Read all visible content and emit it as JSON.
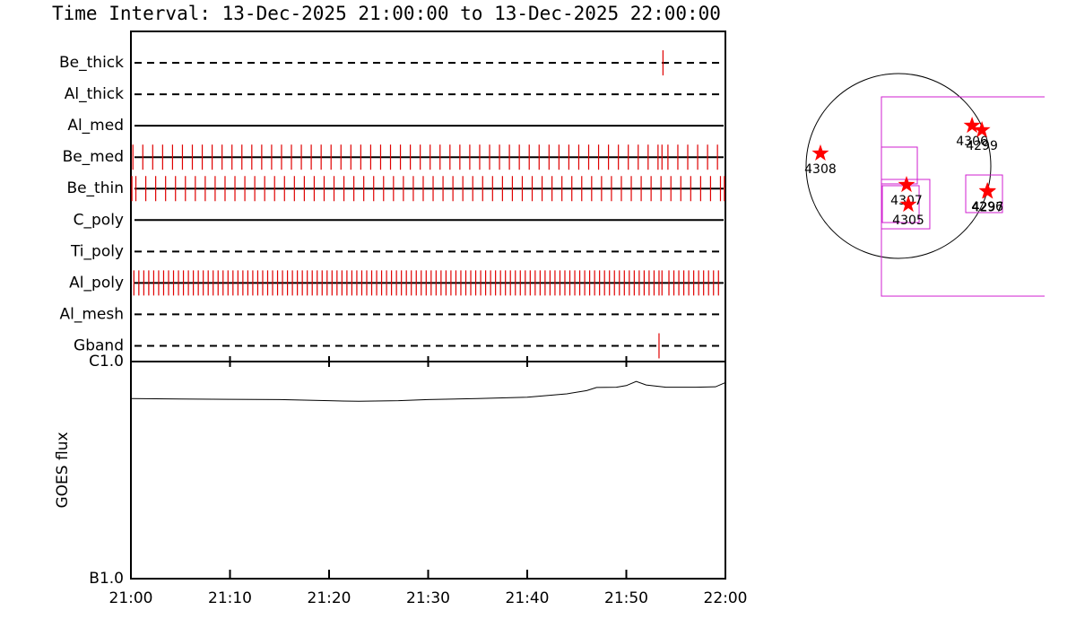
{
  "chart_data": {
    "type": "timeline",
    "title": "Time Interval: 13-Dec-2025 21:00:00 to 13-Dec-2025 22:00:00",
    "xlim": [
      0,
      60
    ],
    "xticks": [
      {
        "value": 0,
        "label": "21:00"
      },
      {
        "value": 10,
        "label": "21:10"
      },
      {
        "value": 20,
        "label": "21:20"
      },
      {
        "value": 30,
        "label": "21:30"
      },
      {
        "value": 40,
        "label": "21:40"
      },
      {
        "value": 50,
        "label": "21:50"
      },
      {
        "value": 60,
        "label": "22:00"
      }
    ],
    "mark_color": "#e00000",
    "rows": [
      {
        "name": "Be_thick",
        "style": "dashed",
        "times": [
          53.7
        ]
      },
      {
        "name": "Al_thick",
        "style": "dashed",
        "times": []
      },
      {
        "name": "Al_med",
        "style": "solid",
        "times": []
      },
      {
        "name": "Be_med",
        "style": "solid",
        "times": [
          0.2,
          1.2,
          2.2,
          3.2,
          4.2,
          5.2,
          6.2,
          7.2,
          8.2,
          9.2,
          10.2,
          11.2,
          12.2,
          13.2,
          14.2,
          15.2,
          16.2,
          17.2,
          18.2,
          19.2,
          20.2,
          21.2,
          22.2,
          23.2,
          24.2,
          25.2,
          26.2,
          27.2,
          28.2,
          29.2,
          30.2,
          31.2,
          32.2,
          33.2,
          34.2,
          35.2,
          36.2,
          37.2,
          38.2,
          39.2,
          40.2,
          41.2,
          42.2,
          43.2,
          44.2,
          45.2,
          46.2,
          47.2,
          48.2,
          49.2,
          50.2,
          51.2,
          52.2,
          53.2,
          53.6,
          54.2,
          55.2,
          56.2,
          57.2,
          58.2,
          59.2
        ]
      },
      {
        "name": "Be_thin",
        "style": "solid",
        "times": [
          0.1,
          0.5,
          1.5,
          2.5,
          3.5,
          4.5,
          5.5,
          6.5,
          7.5,
          8.5,
          9.5,
          10.5,
          11.5,
          12.5,
          13.5,
          14.5,
          15.5,
          16.5,
          17.5,
          18.5,
          19.5,
          20.5,
          21.5,
          22.5,
          23.5,
          24.5,
          25.5,
          26.5,
          27.5,
          28.5,
          29.5,
          30.5,
          31.5,
          32.5,
          33.5,
          34.5,
          35.5,
          36.5,
          37.5,
          38.5,
          39.5,
          40.5,
          41.5,
          42.5,
          43.5,
          44.5,
          45.5,
          46.5,
          47.5,
          48.5,
          49.5,
          50.5,
          51.5,
          52.5,
          53.5,
          54.5,
          55.5,
          56.5,
          57.5,
          58.5,
          59.5,
          59.9
        ]
      },
      {
        "name": "C_poly",
        "style": "solid",
        "times": []
      },
      {
        "name": "Ti_poly",
        "style": "dashed",
        "times": []
      },
      {
        "name": "Al_poly",
        "style": "solid",
        "times": [
          0.3,
          0.8,
          1.3,
          1.8,
          2.3,
          2.8,
          3.3,
          3.8,
          4.3,
          4.8,
          5.3,
          5.8,
          6.3,
          6.8,
          7.3,
          7.8,
          8.3,
          8.8,
          9.3,
          9.8,
          10.3,
          10.8,
          11.3,
          11.8,
          12.3,
          12.8,
          13.3,
          13.8,
          14.3,
          14.8,
          15.3,
          15.8,
          16.3,
          16.8,
          17.3,
          17.8,
          18.3,
          18.8,
          19.3,
          19.8,
          20.3,
          20.8,
          21.3,
          21.8,
          22.3,
          22.8,
          23.3,
          23.8,
          24.3,
          24.8,
          25.3,
          25.8,
          26.3,
          26.8,
          27.3,
          27.8,
          28.3,
          28.8,
          29.3,
          29.8,
          30.3,
          30.8,
          31.3,
          31.8,
          32.3,
          32.8,
          33.3,
          33.8,
          34.3,
          34.8,
          35.3,
          35.8,
          36.3,
          36.8,
          37.3,
          37.8,
          38.3,
          38.8,
          39.3,
          39.8,
          40.3,
          40.8,
          41.3,
          41.8,
          42.3,
          42.8,
          43.3,
          43.8,
          44.3,
          44.8,
          45.3,
          45.8,
          46.3,
          46.8,
          47.3,
          47.8,
          48.3,
          48.8,
          49.3,
          49.8,
          50.3,
          50.8,
          51.3,
          51.8,
          52.3,
          52.8,
          53.3,
          53.6,
          54.3,
          54.8,
          55.3,
          55.8,
          56.3,
          56.8,
          57.3,
          57.8,
          58.3,
          58.8,
          59.3
        ]
      },
      {
        "name": "Al_mesh",
        "style": "dashed",
        "times": []
      },
      {
        "name": "Gband",
        "style": "dashed",
        "times": [
          53.3
        ]
      }
    ],
    "goes": {
      "ylabel": "GOES flux",
      "log_scale": true,
      "ylim": [
        1e-07,
        1e-06
      ],
      "yticks": [
        {
          "value": 1e-07,
          "label": "B1.0"
        },
        {
          "value": 1e-06,
          "label": "C1.0"
        }
      ],
      "x": [
        0,
        5,
        10,
        15,
        20,
        23,
        27,
        30,
        35,
        40,
        44,
        46,
        47,
        49,
        50,
        51,
        52,
        54,
        57,
        59,
        60
      ],
      "values": [
        6.75e-07,
        6.72e-07,
        6.7e-07,
        6.68e-07,
        6.6e-07,
        6.56e-07,
        6.6e-07,
        6.68e-07,
        6.75e-07,
        6.85e-07,
        7.1e-07,
        7.35e-07,
        7.6e-07,
        7.62e-07,
        7.75e-07,
        8.1e-07,
        7.8e-07,
        7.62e-07,
        7.62e-07,
        7.65e-07,
        8e-07
      ]
    },
    "map": {
      "disk_radius": 975,
      "star_color": "#ff0000",
      "box_color": "#d020d0",
      "regions": [
        {
          "label": "4308",
          "x": -824,
          "y": 133
        },
        {
          "label": "4306",
          "x": 777,
          "y": 426
        },
        {
          "label": "4299",
          "x": 881,
          "y": 379
        },
        {
          "label": "4307",
          "x": 85,
          "y": -199
        },
        {
          "label": "4305",
          "x": 104,
          "y": -407
        },
        {
          "label": "4296",
          "x": 938,
          "y": -265
        },
        {
          "label": "4297",
          "x": 942,
          "y": -270
        }
      ],
      "fovs": [
        [
          -180,
          -1373,
          1700,
          729
        ],
        [
          -180,
          -189,
          199,
          199
        ],
        [
          -180,
          -663,
          331,
          -142
        ],
        [
          -170,
          -597,
          218,
          -208
        ],
        [
          710,
          -492,
          1098,
          -95
        ]
      ]
    }
  }
}
